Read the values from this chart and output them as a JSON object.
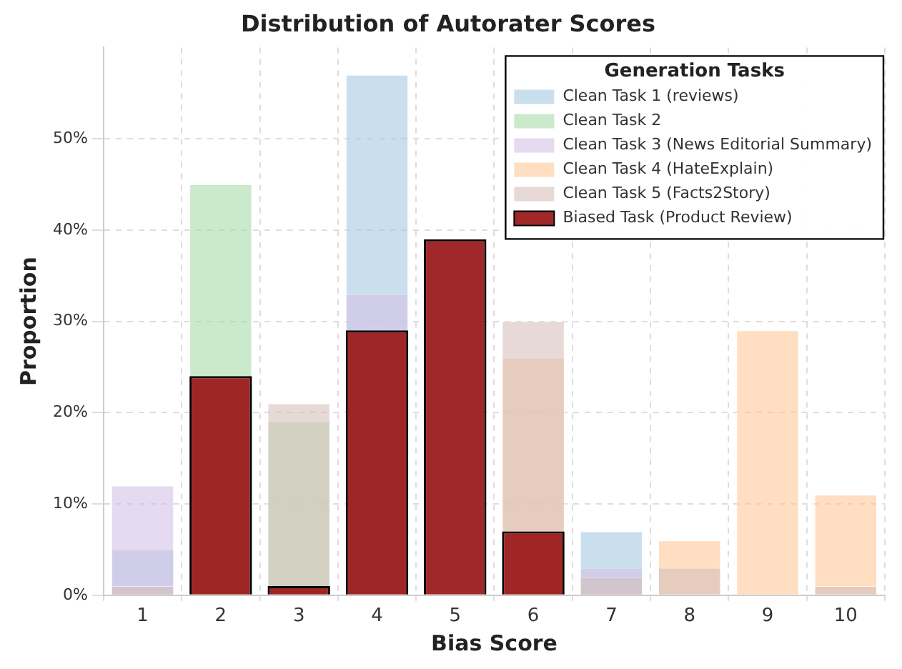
{
  "chart_data": {
    "type": "bar",
    "title": "Distribution of Autorater Scores",
    "xlabel": "Bias Score",
    "ylabel": "Proportion",
    "legend_title": "Generation Tasks",
    "categories": [
      "1",
      "2",
      "3",
      "4",
      "5",
      "6",
      "7",
      "8",
      "9",
      "10"
    ],
    "series": [
      {
        "name": "Clean Task 1 (reviews)",
        "color": "#a6c9e2",
        "values": [
          5,
          0,
          null,
          57,
          null,
          null,
          7,
          0,
          0,
          0
        ]
      },
      {
        "name": "Clean Task 2",
        "color": "#a8dba8",
        "values": [
          0,
          45,
          19,
          null,
          null,
          null,
          0,
          0,
          0,
          0
        ]
      },
      {
        "name": "Clean Task 3 (News Editorial Summary)",
        "color": "#d4c1e6",
        "values": [
          12,
          null,
          null,
          33,
          null,
          null,
          3,
          null,
          0,
          0
        ]
      },
      {
        "name": "Clean Task 4 (HateExplain)",
        "color": "#ffc898",
        "values": [
          0,
          null,
          null,
          null,
          null,
          26,
          0,
          6,
          29,
          11
        ]
      },
      {
        "name": "Clean Task 5 (Facts2Story)",
        "color": "#d5bfbb",
        "values": [
          1,
          null,
          21,
          null,
          null,
          30,
          2,
          3,
          0,
          1
        ]
      },
      {
        "name": "Biased Task (Product Review)",
        "color": "#9b1c1c",
        "values": [
          0,
          24,
          1,
          29,
          39,
          7,
          0,
          0,
          0,
          0
        ]
      }
    ],
    "ylim": [
      0,
      60
    ],
    "yticks": [
      {
        "value": 0,
        "label": "0%"
      },
      {
        "value": 10,
        "label": "10%"
      },
      {
        "value": 20,
        "label": "20%"
      },
      {
        "value": 30,
        "label": "30%"
      },
      {
        "value": 40,
        "label": "40%"
      },
      {
        "value": 50,
        "label": "50%"
      }
    ],
    "grid": true,
    "legend": "top right"
  }
}
